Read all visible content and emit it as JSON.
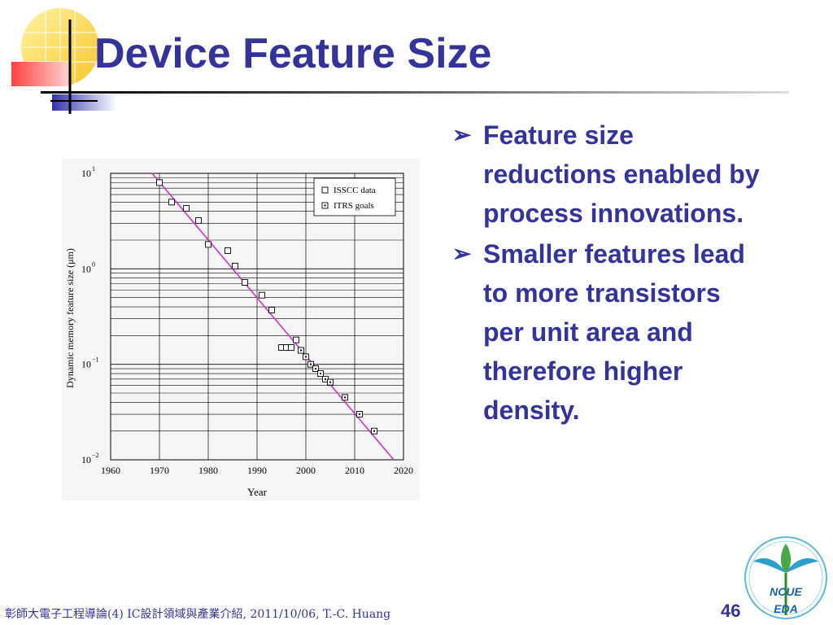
{
  "slide": {
    "title": "Device Feature Size",
    "footer": "彰師大電子工程導論(4) IC設計領域與產業介紹, 2011/10/06, T.-C. Huang",
    "page_number": "46",
    "logo_text_top": "NCUE",
    "logo_text_bottom": "EDA",
    "bullets": [
      "Feature size reductions enabled by process innovations.",
      "Smaller features lead to more transistors per unit area and therefore higher density."
    ],
    "colors": {
      "title": "#333399",
      "text": "#333399",
      "trend_line": "#cc33cc"
    }
  },
  "chart_data": {
    "type": "scatter",
    "xlabel": "Year",
    "ylabel": "Dynamic memory feature size (μm)",
    "x_ticks": [
      1960,
      1970,
      1980,
      1990,
      2000,
      2010,
      2020
    ],
    "y_ticks": [
      "10",
      "10",
      "10",
      "10"
    ],
    "y_tick_exponents": [
      "1",
      "0",
      "−1",
      "−2"
    ],
    "y_tick_values": [
      10,
      1,
      0.1,
      0.01
    ],
    "xlim": [
      1960,
      2020
    ],
    "ylim": [
      0.01,
      10
    ],
    "y_scale": "log",
    "grid": true,
    "legend_position": "top-right",
    "legend": [
      "ISSCC data",
      "ITRS goals"
    ],
    "series": [
      {
        "name": "ISSCC data",
        "marker": "open-square",
        "points": [
          [
            1970,
            8.0
          ],
          [
            1972.5,
            5.0
          ],
          [
            1975.5,
            4.3
          ],
          [
            1978,
            3.2
          ],
          [
            1980,
            1.8
          ],
          [
            1984,
            1.55
          ],
          [
            1985.5,
            1.07
          ],
          [
            1987.5,
            0.72
          ],
          [
            1991,
            0.53
          ],
          [
            1993,
            0.37
          ],
          [
            1995,
            0.15
          ],
          [
            1996,
            0.15
          ],
          [
            1997,
            0.15
          ],
          [
            1998,
            0.18
          ]
        ]
      },
      {
        "name": "ITRS goals",
        "marker": "dot-square",
        "points": [
          [
            1999,
            0.14
          ],
          [
            2000,
            0.12
          ],
          [
            2001,
            0.1
          ],
          [
            2002,
            0.09
          ],
          [
            2003,
            0.08
          ],
          [
            2004,
            0.07
          ],
          [
            2005,
            0.065
          ],
          [
            2008,
            0.045
          ],
          [
            2011,
            0.03
          ],
          [
            2014,
            0.02
          ]
        ]
      }
    ],
    "trend_line": [
      [
        1968.5,
        10
      ],
      [
        2018,
        0.01
      ]
    ]
  }
}
